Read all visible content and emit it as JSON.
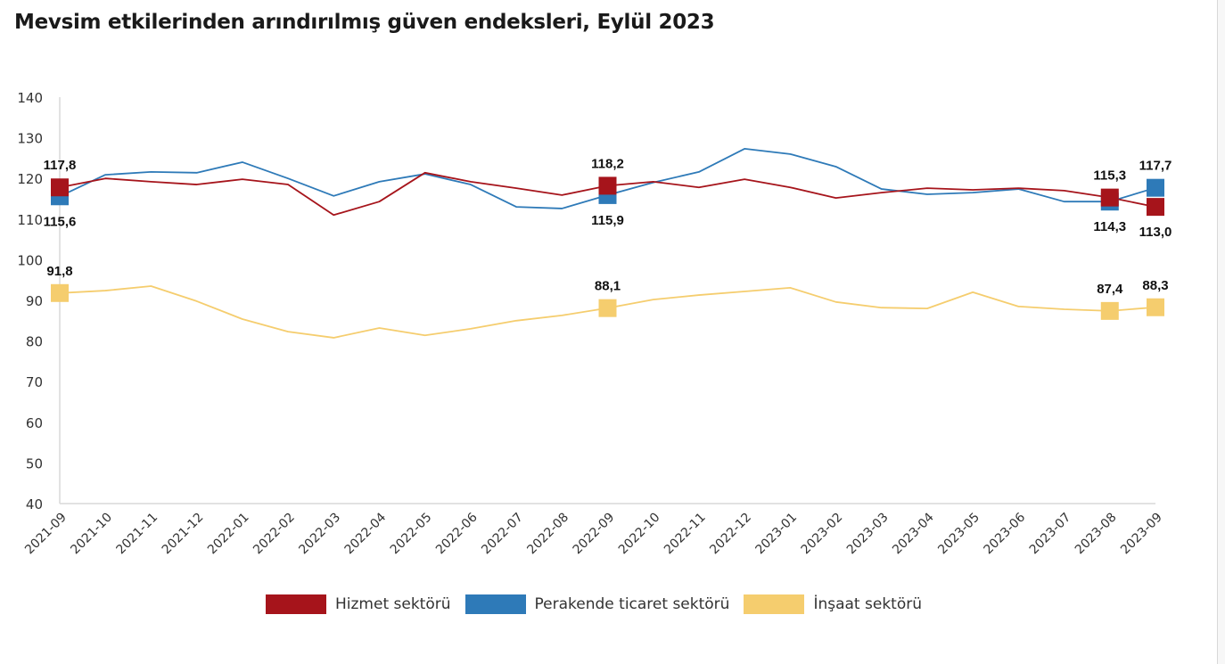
{
  "chart_data": {
    "type": "line",
    "title": "Mevsim etkilerinden arındırılmış güven endeksleri, Eylül 2023",
    "xlabel": "",
    "ylabel": "",
    "ylim": [
      40,
      140
    ],
    "yticks": [
      40,
      50,
      60,
      70,
      80,
      90,
      100,
      110,
      120,
      130,
      140
    ],
    "grid": false,
    "legend_position": "bottom",
    "categories": [
      "2021-09",
      "2021-10",
      "2021-11",
      "2021-12",
      "2022-01",
      "2022-02",
      "2022-03",
      "2022-04",
      "2022-05",
      "2022-06",
      "2022-07",
      "2022-08",
      "2022-09",
      "2022-10",
      "2022-11",
      "2022-12",
      "2023-01",
      "2023-02",
      "2023-03",
      "2023-04",
      "2023-05",
      "2023-06",
      "2023-07",
      "2023-08",
      "2023-09"
    ],
    "series": [
      {
        "name": "Hizmet sektörü",
        "color": "#A6141B",
        "values": [
          117.8,
          120.0,
          119.2,
          118.5,
          119.8,
          118.5,
          111.0,
          114.3,
          121.4,
          119.2,
          117.6,
          115.9,
          118.2,
          119.2,
          117.8,
          119.8,
          117.8,
          115.2,
          116.5,
          117.6,
          117.2,
          117.6,
          117.0,
          115.3,
          113.0
        ],
        "labeled_points": [
          {
            "index": 0,
            "label": "117,8",
            "position": "above"
          },
          {
            "index": 12,
            "label": "118,2",
            "position": "above"
          },
          {
            "index": 23,
            "label": "115,3",
            "position": "above"
          },
          {
            "index": 24,
            "label": "113,0",
            "position": "below"
          }
        ]
      },
      {
        "name": "Perakende ticaret sektörü",
        "color": "#2E7AB8",
        "values": [
          115.6,
          120.9,
          121.6,
          121.4,
          124.0,
          120.0,
          115.7,
          119.2,
          121.1,
          118.5,
          113.0,
          112.6,
          115.9,
          119.0,
          121.6,
          127.3,
          126.0,
          122.9,
          117.4,
          116.1,
          116.5,
          117.4,
          114.3,
          114.3,
          117.7
        ],
        "labeled_points": [
          {
            "index": 0,
            "label": "115,6",
            "position": "below"
          },
          {
            "index": 12,
            "label": "115,9",
            "position": "below"
          },
          {
            "index": 23,
            "label": "114,3",
            "position": "below"
          },
          {
            "index": 24,
            "label": "117,7",
            "position": "above"
          }
        ]
      },
      {
        "name": "İnşaat sektörü",
        "color": "#F5CD6E",
        "values": [
          91.8,
          92.4,
          93.5,
          89.8,
          85.4,
          82.3,
          80.8,
          83.2,
          81.4,
          83.0,
          85.0,
          86.3,
          88.1,
          90.2,
          91.3,
          92.2,
          93.1,
          89.6,
          88.2,
          88.0,
          92.0,
          88.5,
          87.8,
          87.4,
          88.3
        ],
        "labeled_points": [
          {
            "index": 0,
            "label": "91,8",
            "position": "above"
          },
          {
            "index": 12,
            "label": "88,1",
            "position": "above"
          },
          {
            "index": 23,
            "label": "87,4",
            "position": "above"
          },
          {
            "index": 24,
            "label": "88,3",
            "position": "above"
          }
        ]
      }
    ]
  }
}
